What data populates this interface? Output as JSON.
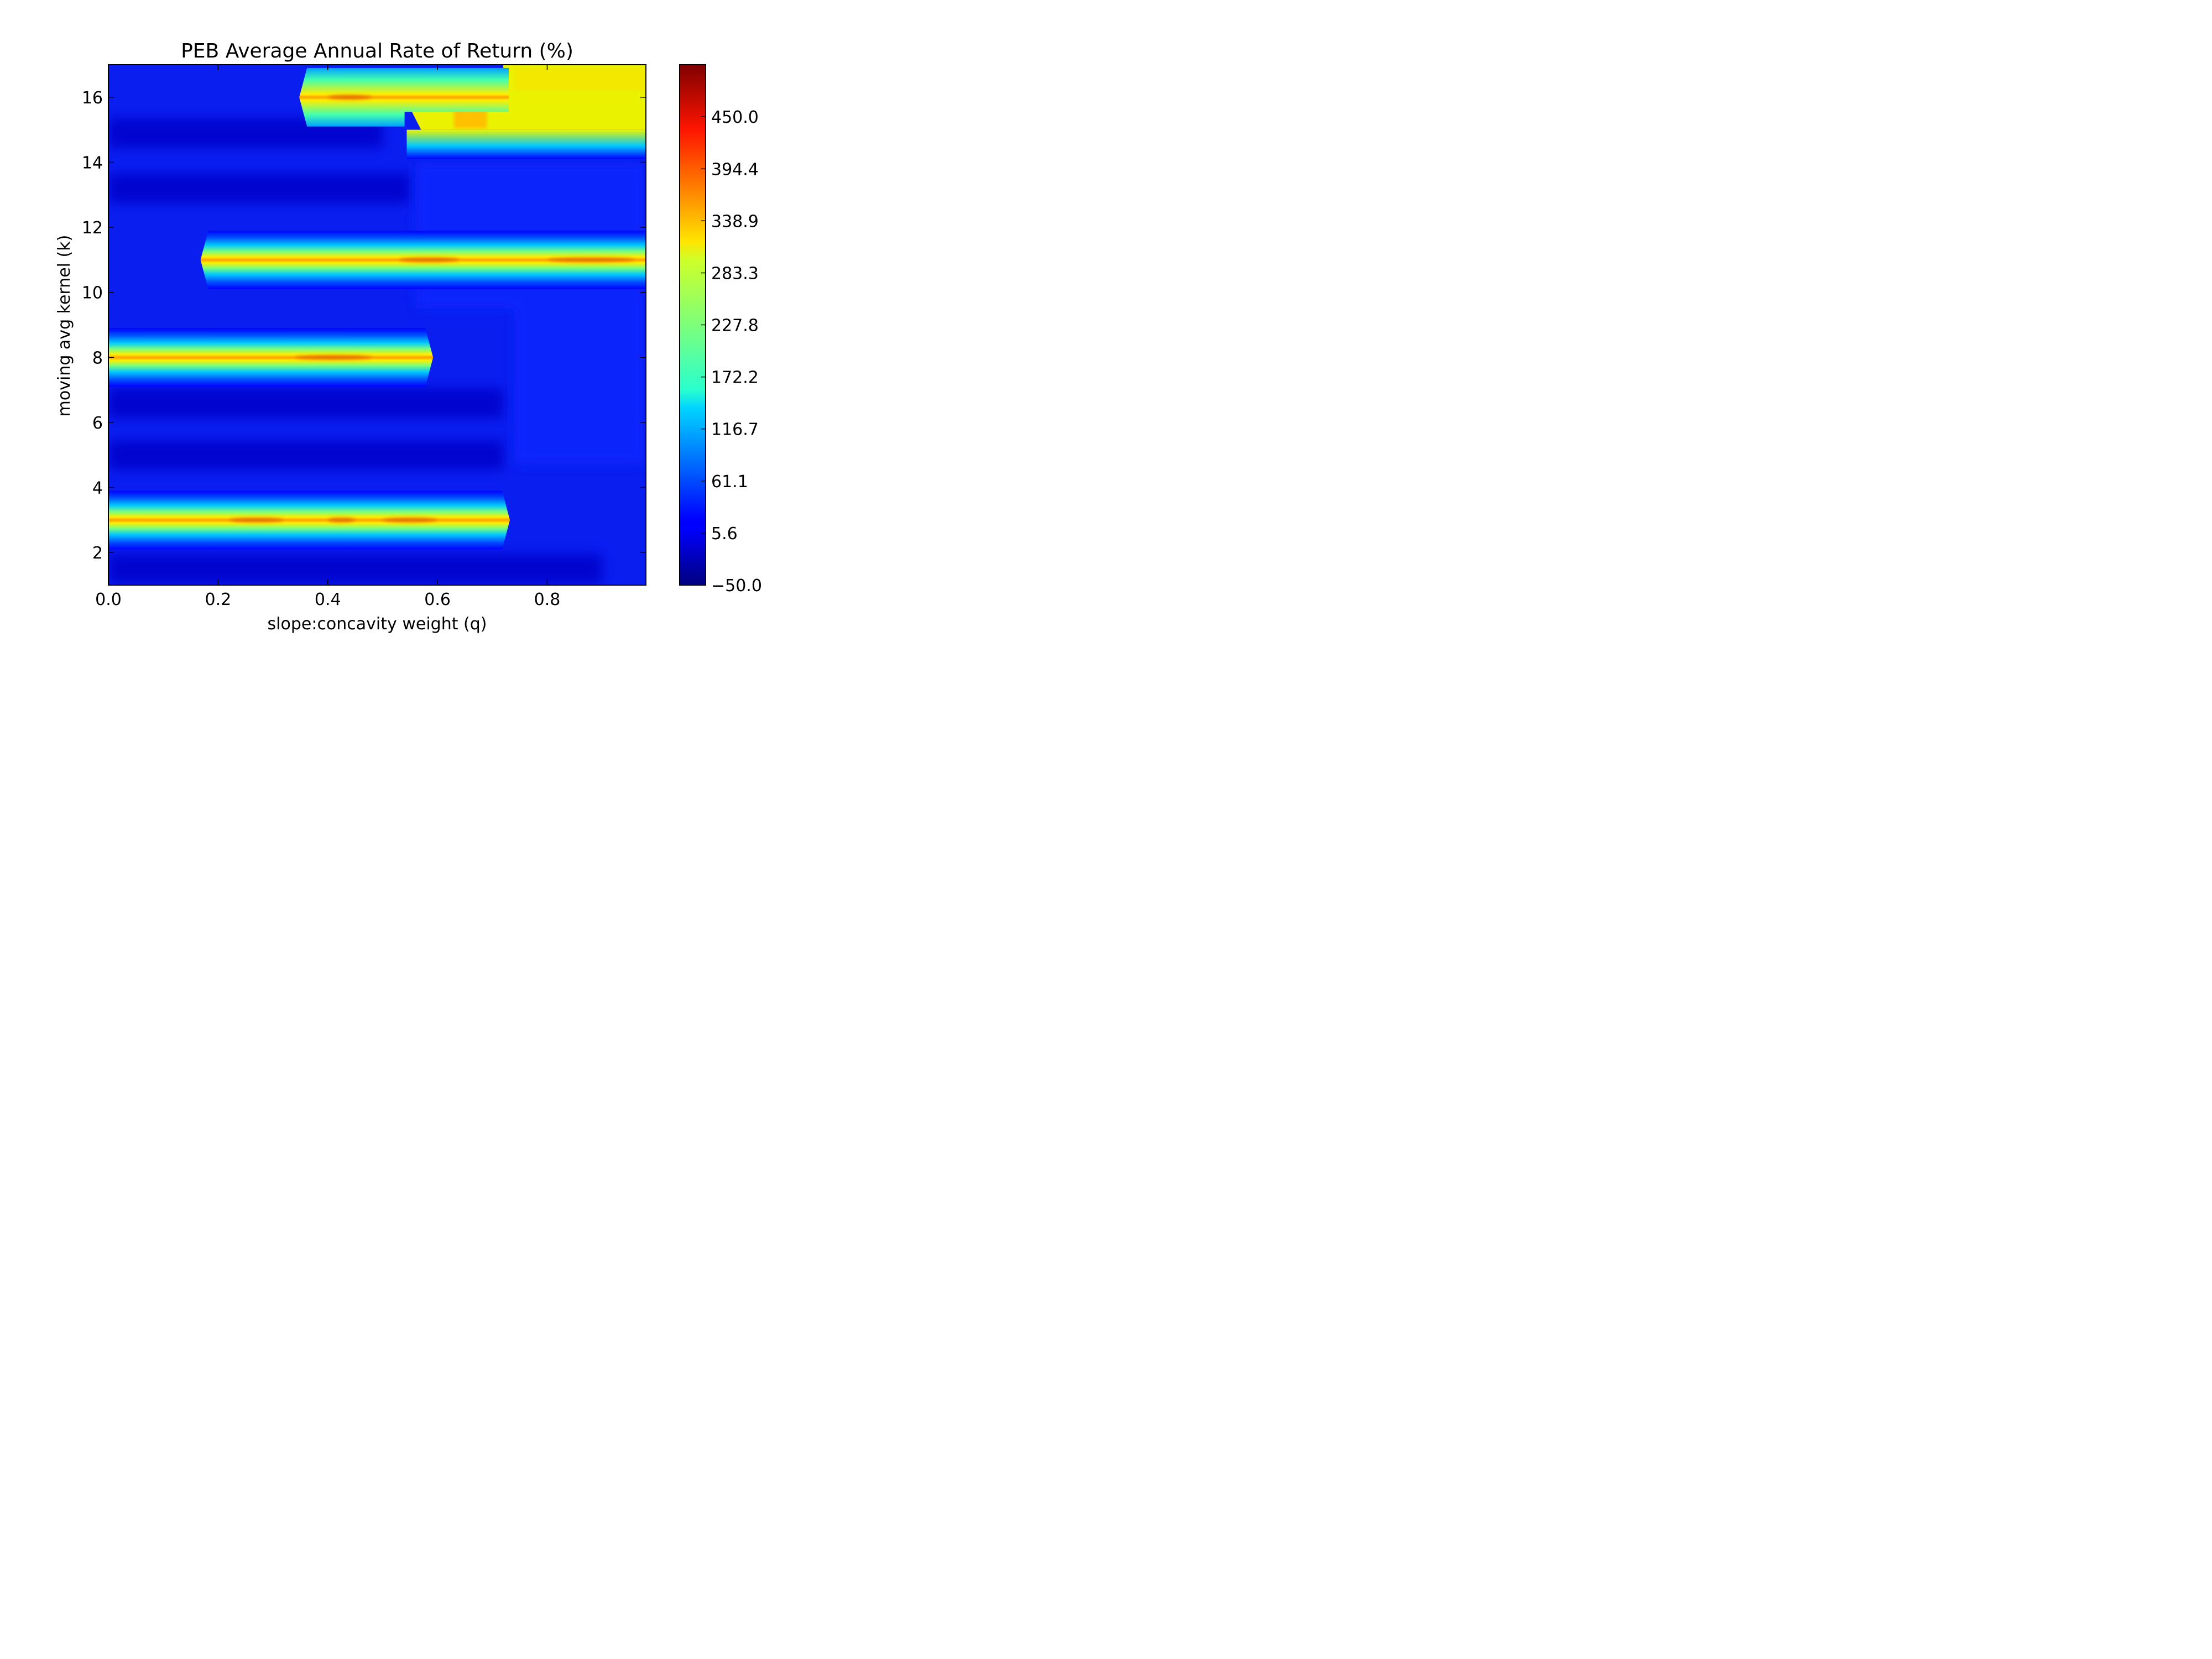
{
  "chart_data": {
    "type": "heatmap",
    "title": "PEB Average Annual Rate of Return (%)",
    "xlabel": "slope:concavity weight (q)",
    "ylabel": "moving avg kernel (k)",
    "xlim": [
      0.0,
      0.98
    ],
    "ylim": [
      1,
      17
    ],
    "x_ticks": [
      0.0,
      0.2,
      0.4,
      0.6,
      0.8
    ],
    "x_tick_labels": [
      "0.0",
      "0.2",
      "0.4",
      "0.6",
      "0.8"
    ],
    "y_ticks": [
      2,
      4,
      6,
      8,
      10,
      12,
      14,
      16
    ],
    "y_tick_labels": [
      "2",
      "4",
      "6",
      "8",
      "10",
      "12",
      "14",
      "16"
    ],
    "colorbar": {
      "colormap": "jet",
      "range": [
        -50.0,
        505.6
      ],
      "ticks": [
        -50.0,
        5.6,
        61.1,
        116.7,
        172.2,
        227.8,
        283.3,
        338.9,
        394.4,
        450.0
      ],
      "tick_labels": [
        "−50.0",
        "5.6",
        "61.1",
        "116.7",
        "172.2",
        "227.8",
        "283.3",
        "338.9",
        "394.4",
        "450.0"
      ]
    },
    "background_value": 20,
    "bands": [
      {
        "k": 3,
        "q_from": 0.0,
        "q_to": 0.73,
        "peak_value": 340
      },
      {
        "k": 8,
        "q_from": 0.0,
        "q_to": 0.59,
        "peak_value": 330
      },
      {
        "k": 11,
        "q_from": 0.17,
        "q_to": 0.98,
        "peak_value": 345
      },
      {
        "k": 16,
        "q_from": 0.35,
        "q_to": 0.98,
        "peak_value": 330
      }
    ],
    "high_region": {
      "k_from": 15,
      "k_to": 17,
      "q_from": 0.55,
      "q_to": 0.98,
      "value": 300
    }
  }
}
